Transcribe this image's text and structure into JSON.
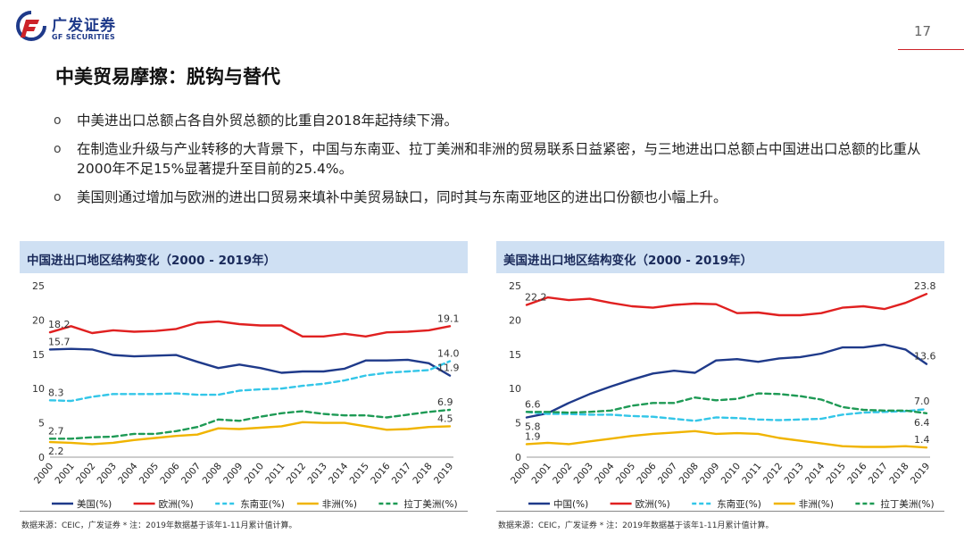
{
  "header": {
    "logo_cn": "广发证券",
    "logo_en": "GF SECURITIES",
    "page_number": "17"
  },
  "title": "中美贸易摩擦：脱钩与替代",
  "bullets": [
    {
      "mark": "o",
      "text": "中美进出口总额占各自外贸总额的比重自2018年起持续下滑。"
    },
    {
      "mark": "o",
      "text": "在制造业升级与产业转移的大背景下，中国与东南亚、拉丁美洲和非洲的贸易联系日益紧密，与三地进出口总额占中国进出口总额的比重从2000年不足15%显著提升至目前的25.4%。"
    },
    {
      "mark": "o",
      "text": "美国则通过增加与欧洲的进出口贸易来填补中美贸易缺口，同时其与东南亚地区的进出口份额也小幅上升。"
    }
  ],
  "chart_data": [
    {
      "type": "line",
      "title": "中国进出口地区结构变化（2000 - 2019年）",
      "x": [
        "2000",
        "2001",
        "2002",
        "2003",
        "2004",
        "2005",
        "2006",
        "2007",
        "2008",
        "2009",
        "2010",
        "2011",
        "2012",
        "2013",
        "2014",
        "2015",
        "2016",
        "2017",
        "2018",
        "2019"
      ],
      "ylim": [
        0,
        25
      ],
      "yticks": [
        "0",
        "5",
        "10",
        "15",
        "20",
        "25"
      ],
      "series": [
        {
          "name": "美国(%)",
          "color": "#1f3a8a",
          "dash": "",
          "values": [
            15.7,
            15.8,
            15.7,
            14.9,
            14.7,
            14.8,
            14.9,
            13.9,
            13.0,
            13.5,
            13.0,
            12.3,
            12.5,
            12.5,
            12.9,
            14.1,
            14.1,
            14.2,
            13.7,
            11.9
          ]
        },
        {
          "name": "欧洲(%)",
          "color": "#e02020",
          "dash": "",
          "values": [
            18.2,
            19.1,
            18.1,
            18.5,
            18.3,
            18.4,
            18.7,
            19.6,
            19.8,
            19.4,
            19.2,
            19.2,
            17.6,
            17.6,
            18.0,
            17.6,
            18.2,
            18.3,
            18.5,
            19.1
          ]
        },
        {
          "name": "东南亚(%)",
          "color": "#33c6e8",
          "dash": "6,4",
          "values": [
            8.3,
            8.2,
            8.8,
            9.2,
            9.2,
            9.2,
            9.3,
            9.1,
            9.1,
            9.7,
            9.9,
            10.0,
            10.4,
            10.7,
            11.2,
            11.9,
            12.3,
            12.5,
            12.7,
            14.0
          ]
        },
        {
          "name": "非洲(%)",
          "color": "#f0b400",
          "dash": "",
          "values": [
            2.2,
            2.1,
            1.9,
            2.1,
            2.5,
            2.8,
            3.1,
            3.3,
            4.2,
            4.1,
            4.3,
            4.5,
            5.1,
            5.0,
            5.0,
            4.5,
            4.0,
            4.1,
            4.4,
            4.5
          ]
        },
        {
          "name": "拉丁美洲(%)",
          "color": "#1e9a55",
          "dash": "6,4",
          "values": [
            2.7,
            2.7,
            2.9,
            3.0,
            3.4,
            3.4,
            3.8,
            4.4,
            5.5,
            5.3,
            5.9,
            6.4,
            6.7,
            6.3,
            6.1,
            6.1,
            5.8,
            6.2,
            6.6,
            6.9
          ]
        }
      ],
      "labels": [
        {
          "series": 0,
          "index": 0,
          "text": "15.7"
        },
        {
          "series": 1,
          "index": 0,
          "text": "18.2"
        },
        {
          "series": 2,
          "index": 0,
          "text": "8.3"
        },
        {
          "series": 4,
          "index": 0,
          "text": "2.7"
        },
        {
          "series": 3,
          "index": 0,
          "text": "2.2"
        },
        {
          "series": 1,
          "index": 19,
          "text": "19.1"
        },
        {
          "series": 2,
          "index": 19,
          "text": "14.0"
        },
        {
          "series": 0,
          "index": 19,
          "text": "11.9"
        },
        {
          "series": 4,
          "index": 19,
          "text": "6.9"
        },
        {
          "series": 3,
          "index": 19,
          "text": "4.5"
        }
      ],
      "source": "数据来源：CEIC，广发证券 * 注：2019年数据基于该年1-11月累计值计算。"
    },
    {
      "type": "line",
      "title": "美国进出口地区结构变化（2000 - 2019年）",
      "x": [
        "2000",
        "2001",
        "2002",
        "2003",
        "2004",
        "2005",
        "2006",
        "2007",
        "2008",
        "2009",
        "2010",
        "2011",
        "2012",
        "2013",
        "2014",
        "2015",
        "2016",
        "2017",
        "2018",
        "2019"
      ],
      "ylim": [
        0,
        25
      ],
      "yticks": [
        "0",
        "5",
        "10",
        "15",
        "20",
        "25"
      ],
      "series": [
        {
          "name": "中国(%)",
          "color": "#1f3a8a",
          "dash": "",
          "values": [
            5.8,
            6.4,
            7.9,
            9.2,
            10.3,
            11.3,
            12.2,
            12.6,
            12.3,
            14.1,
            14.3,
            13.9,
            14.4,
            14.6,
            15.1,
            16.0,
            16.0,
            16.4,
            15.7,
            13.6
          ]
        },
        {
          "name": "欧洲(%)",
          "color": "#e02020",
          "dash": "",
          "values": [
            22.2,
            23.3,
            22.9,
            23.1,
            22.5,
            22.0,
            21.8,
            22.2,
            22.4,
            22.3,
            21.0,
            21.1,
            20.7,
            20.7,
            21.0,
            21.8,
            22.0,
            21.6,
            22.5,
            23.8
          ]
        },
        {
          "name": "东南亚(%)",
          "color": "#33c6e8",
          "dash": "6,4",
          "values": [
            6.6,
            6.3,
            6.3,
            6.2,
            6.2,
            6.0,
            5.9,
            5.6,
            5.3,
            5.8,
            5.7,
            5.5,
            5.4,
            5.5,
            5.6,
            6.2,
            6.5,
            6.6,
            6.7,
            7.0
          ]
        },
        {
          "name": "非洲(%)",
          "color": "#f0b400",
          "dash": "",
          "values": [
            1.9,
            2.1,
            1.9,
            2.3,
            2.7,
            3.1,
            3.4,
            3.6,
            3.8,
            3.4,
            3.5,
            3.4,
            2.8,
            2.4,
            2.0,
            1.6,
            1.5,
            1.5,
            1.6,
            1.4
          ]
        },
        {
          "name": "拉丁美洲(%)",
          "color": "#1e9a55",
          "dash": "6,4",
          "values": [
            6.6,
            6.6,
            6.5,
            6.6,
            6.8,
            7.5,
            7.9,
            7.9,
            8.7,
            8.3,
            8.5,
            9.3,
            9.2,
            8.9,
            8.4,
            7.3,
            6.9,
            6.8,
            6.8,
            6.4
          ]
        }
      ],
      "labels": [
        {
          "series": 1,
          "index": 0,
          "text": "22.2"
        },
        {
          "series": 2,
          "index": 0,
          "text": "6.6"
        },
        {
          "series": 0,
          "index": 0,
          "text": "5.8"
        },
        {
          "series": 3,
          "index": 0,
          "text": "1.9"
        },
        {
          "series": 1,
          "index": 19,
          "text": "23.8"
        },
        {
          "series": 0,
          "index": 19,
          "text": "13.6"
        },
        {
          "series": 2,
          "index": 19,
          "text": "7.0"
        },
        {
          "series": 4,
          "index": 19,
          "text": "6.4"
        },
        {
          "series": 3,
          "index": 19,
          "text": "1.4"
        }
      ],
      "source": "数据来源：CEIC，广发证券 * 注：2019年数据基于该年1-11月累计值计算。"
    }
  ]
}
